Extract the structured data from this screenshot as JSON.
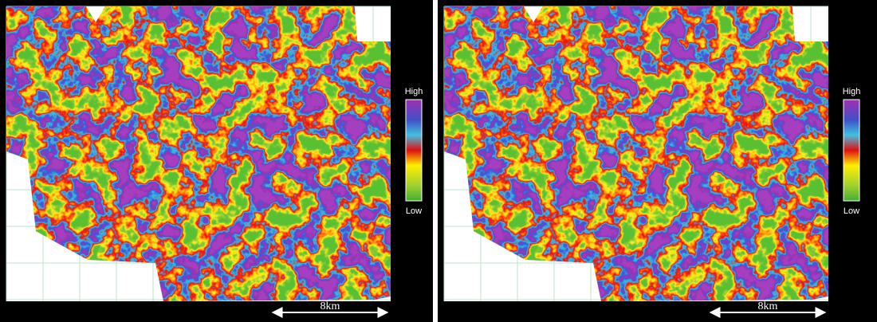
{
  "panels": [
    {
      "legend_high": "High",
      "legend_low": "Low",
      "scale_label": "8km"
    },
    {
      "legend_high": "High",
      "legend_low": "Low",
      "scale_label": "8km"
    }
  ]
}
